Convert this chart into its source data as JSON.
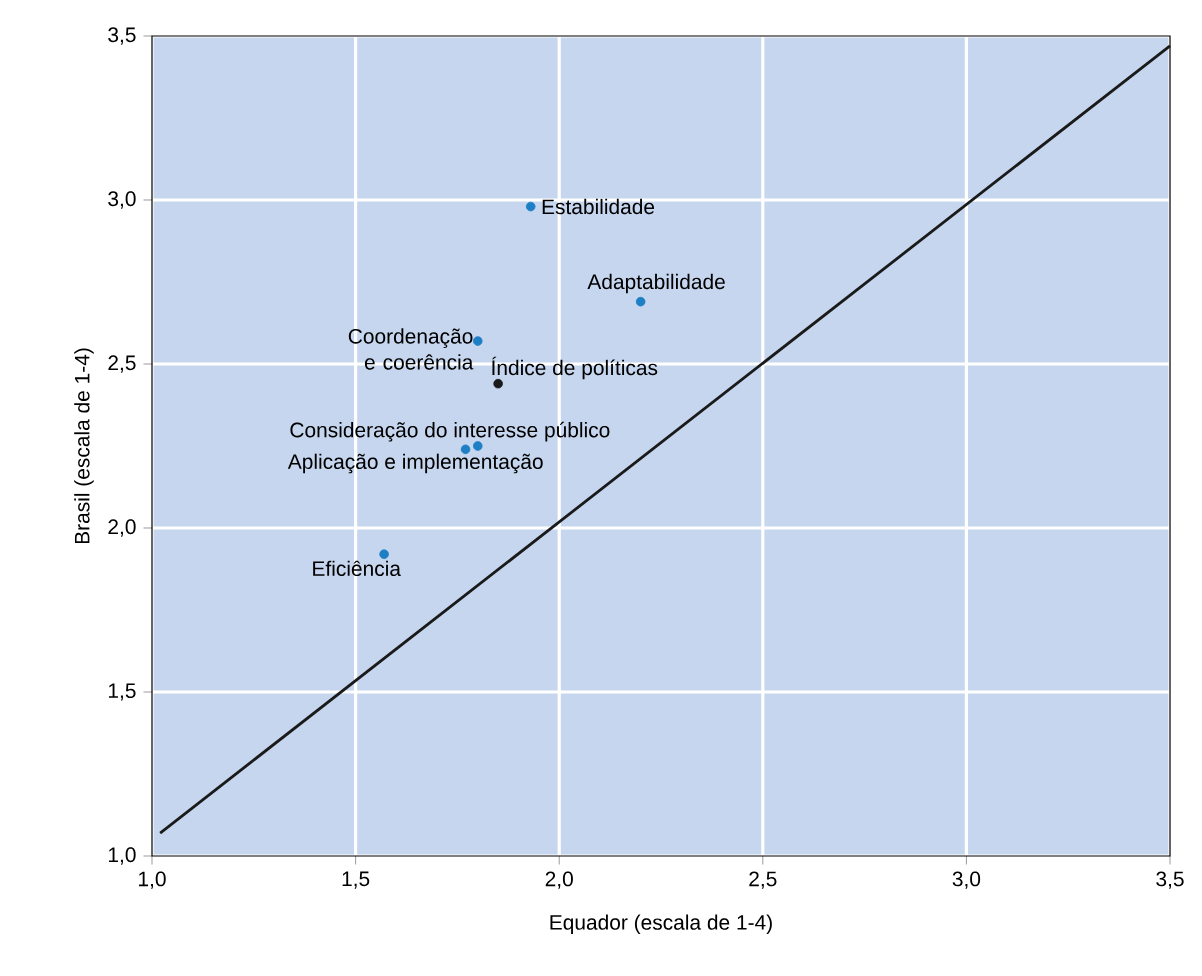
{
  "chart_data": {
    "type": "scatter",
    "xlabel": "Equador (escala de 1-4)",
    "ylabel": "Brasil (escala de 1-4)",
    "xlim": [
      1,
      3.5
    ],
    "ylim": [
      1,
      3.5
    ],
    "xticks": [
      {
        "value": 1,
        "label": "1,0"
      },
      {
        "value": 1.5,
        "label": "1,5"
      },
      {
        "value": 2,
        "label": "2,0"
      },
      {
        "value": 2.5,
        "label": "2,5"
      },
      {
        "value": 3,
        "label": "3,0"
      },
      {
        "value": 3.5,
        "label": "3,5"
      }
    ],
    "yticks": [
      {
        "value": 1,
        "label": "1,0"
      },
      {
        "value": 1.5,
        "label": "1,5"
      },
      {
        "value": 2,
        "label": "2,0"
      },
      {
        "value": 2.5,
        "label": "2,5"
      },
      {
        "value": 3,
        "label": "3,0"
      },
      {
        "value": 3.5,
        "label": "3,5"
      }
    ],
    "grid": true,
    "series": [
      {
        "type": "line",
        "marker": "none",
        "color": "#1a1a1a",
        "x": [
          1.02,
          3.5
        ],
        "values": [
          1.07,
          3.47
        ]
      },
      {
        "name": "Estabilidade",
        "marker": "circle",
        "color": "#1f7fc4",
        "x": [
          1.93
        ],
        "values": [
          2.98
        ]
      },
      {
        "name": "Adaptabilidade",
        "marker": "circle",
        "color": "#1f7fc4",
        "x": [
          2.2
        ],
        "values": [
          2.69
        ]
      },
      {
        "name": "Coordenação e coerência",
        "marker": "circle",
        "color": "#1f7fc4",
        "x": [
          1.8
        ],
        "values": [
          2.57
        ]
      },
      {
        "name": "Índice de políticas",
        "marker": "circle",
        "color": "#1a1a1a",
        "x": [
          1.85
        ],
        "values": [
          2.44
        ]
      },
      {
        "name": "Consideração do interesse público",
        "marker": "circle",
        "color": "#1f7fc4",
        "x": [
          1.8
        ],
        "values": [
          2.25
        ]
      },
      {
        "name": "Aplicação e implementação",
        "marker": "circle",
        "color": "#1f7fc4",
        "x": [
          1.77
        ],
        "values": [
          2.24
        ]
      },
      {
        "name": "Eficiência",
        "marker": "circle",
        "color": "#1f7fc4",
        "x": [
          1.57
        ],
        "values": [
          1.92
        ]
      }
    ]
  }
}
